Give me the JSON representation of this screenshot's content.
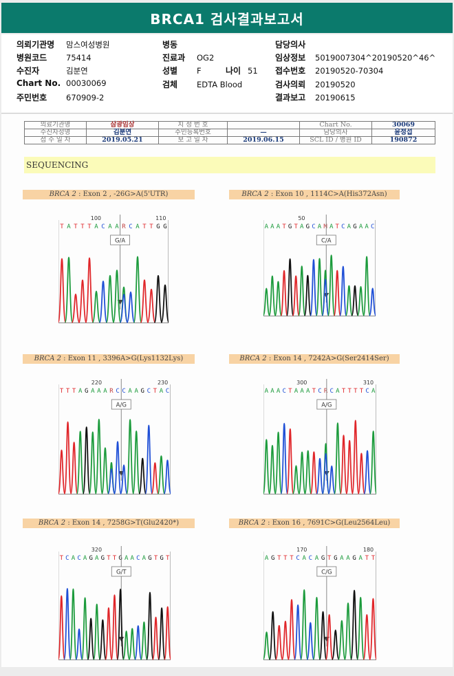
{
  "title": "BRCA1 검사결과보고서",
  "info": {
    "institution_label": "의뢰기관명",
    "institution": "맘스여성병원",
    "hospital_code_label": "병원코드",
    "hospital_code": "75414",
    "patient_label": "수진자",
    "patient": "김분연",
    "chart_label": "Chart No.",
    "chart": "00030069",
    "rrn_label": "주민번호",
    "rrn": "670909-2",
    "ward_label": "병동",
    "ward": "",
    "dept_label": "진료과",
    "dept": "OG2",
    "sex_label": "성별",
    "sex": "F",
    "age_label": "나이",
    "age": "51",
    "specimen_label": "검체",
    "specimen": "EDTA Blood",
    "doctor_label": "담당의사",
    "doctor": "",
    "clinical_label": "임상정보",
    "clinical": "5019007304^20190520^46^",
    "accession_label": "접수번호",
    "accession": "20190520-70304",
    "request_label": "검사의뢰",
    "request": "20190520",
    "report_label": "결과보고",
    "report": "20190615"
  },
  "patient_table": {
    "r1": [
      "의료기관명",
      "삼광임상",
      "지 정 번 호",
      "",
      "Chart No.",
      "30069"
    ],
    "r2": [
      "수진자성명",
      "김분연",
      "주민등록번호",
      "—",
      "담당의사",
      "윤정섭"
    ],
    "r3": [
      "접 수 일 자",
      "2019.05.21",
      "보 고 일 자",
      "2019.06.15",
      "SCL  ID / 병원 ID",
      "190872"
    ]
  },
  "sequencing_label": "SEQUENCING",
  "panels": [
    {
      "gene": "BRCA 2",
      "desc": " : Exon 2 , -26G>A(5'UTR)",
      "pos_left": "100",
      "pos_right": "110",
      "seq": "TATTTACAARCATTGG",
      "call": "G/A"
    },
    {
      "gene": "BRCA 2",
      "desc": " : Exon 10 , 1114C>A(His372Asn)",
      "pos_left": "50",
      "pos_right": "",
      "seq": "AAATGTAGCAMATCAGAAC",
      "call": "C/A"
    },
    {
      "gene": "BRCA 2",
      "desc": " : Exon 11 , 3396A>G(Lys1132Lys)",
      "pos_left": "220",
      "pos_right": "230",
      "seq": "TTTAGAAARCCAAGCTAC",
      "call": "A/G"
    },
    {
      "gene": "BRCA 2",
      "desc": " : Exon 14 , 7242A>G(Ser2414Ser)",
      "pos_left": "300",
      "pos_right": "310",
      "seq": "AAACTAAATCRCATTTTCA",
      "call": "A/G"
    },
    {
      "gene": "BRCA 2",
      "desc": " : Exon 14 , 7258G>T(Glu2420*)",
      "pos_left": "320",
      "pos_right": "",
      "seq": "TCACAGAGTTGAACAGTGT",
      "call": "G/T"
    },
    {
      "gene": "BRCA 2",
      "desc": " : Exon 16 , 7691C>G(Leu2564Leu)",
      "pos_left": "170",
      "pos_right": "180",
      "seq": "AGTTTCACAGTGAAGATT",
      "call": "C/G"
    }
  ],
  "colors": {
    "banner": "#0b7a6c",
    "A": "#1c9b3c",
    "C": "#1f4fd6",
    "G": "#111111",
    "T": "#e0262a",
    "title_bg": "#f8d3a4",
    "seq_bg": "#fbfbb9"
  }
}
